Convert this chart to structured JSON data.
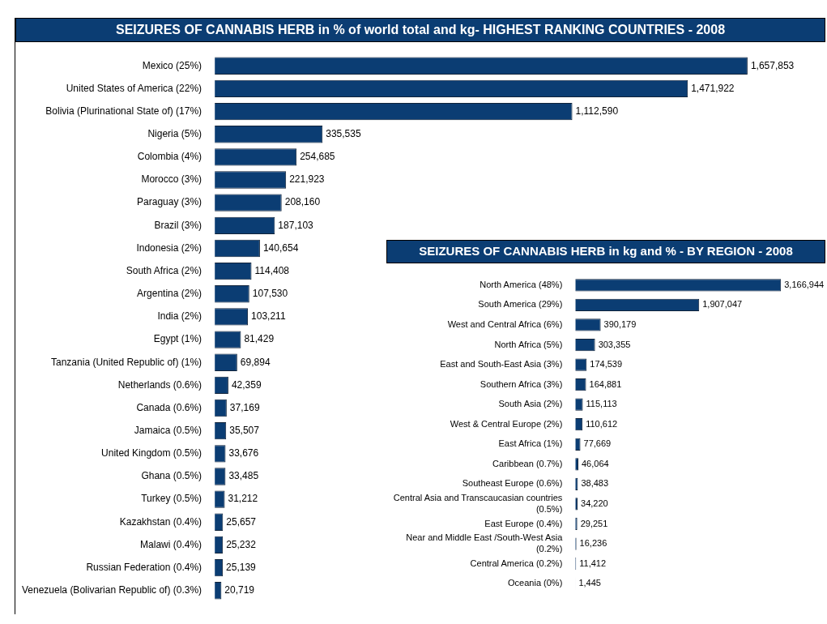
{
  "chart_data": [
    {
      "type": "bar",
      "orientation": "horizontal",
      "title": "SEIZURES OF CANNABIS HERB in % of world total and kg- HIGHEST RANKING COUNTRIES - 2008",
      "color": "#0b3d73",
      "value_labels": [
        "1,657,853",
        "1,471,922",
        "1,112,590",
        "335,535",
        "254,685",
        "221,923",
        "208,160",
        "187,103",
        "140,654",
        "114,408",
        "107,530",
        "103,211",
        "81,429",
        "69,894",
        "42,359",
        "37,169",
        "35,507",
        "33,676",
        "33,485",
        "31,212",
        "25,657",
        "25,232",
        "25,139",
        "20,719"
      ],
      "categories": [
        "Mexico (25%)",
        "United States of America (22%)",
        "Bolivia (Plurinational State of) (17%)",
        "Nigeria (5%)",
        "Colombia (4%)",
        "Morocco (3%)",
        "Paraguay (3%)",
        "Brazil (3%)",
        "Indonesia (2%)",
        "South Africa (2%)",
        "Argentina (2%)",
        "India (2%)",
        "Egypt (1%)",
        "Tanzania (United Republic of) (1%)",
        "Netherlands (0.6%)",
        "Canada (0.6%)",
        "Jamaica (0.5%)",
        "United Kingdom (0.5%)",
        "Ghana (0.5%)",
        "Turkey (0.5%)",
        "Kazakhstan (0.4%)",
        "Malawi (0.4%)",
        "Russian Federation (0.4%)",
        "Venezuela (Bolivarian Republic of) (0.3%)"
      ],
      "values": [
        1657853,
        1471922,
        1112590,
        335535,
        254685,
        221923,
        208160,
        187103,
        140654,
        114408,
        107530,
        103211,
        81429,
        69894,
        42359,
        37169,
        35507,
        33676,
        33485,
        31212,
        25657,
        25232,
        25139,
        20719
      ]
    },
    {
      "type": "bar",
      "orientation": "horizontal",
      "title": "SEIZURES OF CANNABIS HERB in kg and % - BY REGION - 2008",
      "color": "#0b3d73",
      "value_labels": [
        "3,166,944",
        "1,907,047",
        "390,179",
        "303,355",
        "174,539",
        "164,881",
        "115,113",
        "110,612",
        "77,669",
        "46,064",
        "38,483",
        "34,220",
        "29,251",
        "16,236",
        "11,412",
        "1,445"
      ],
      "categories": [
        "North America (48%)",
        "South America (29%)",
        "West and Central Africa (6%)",
        "North Africa (5%)",
        "East and South-East Asia (3%)",
        "Southern Africa (3%)",
        "South Asia (2%)",
        "West & Central Europe (2%)",
        "East Africa (1%)",
        "Caribbean (0.7%)",
        "Southeast Europe (0.6%)",
        "Central Asia and Transcaucasian countries (0.5%)",
        "East Europe (0.4%)",
        "Near and Middle East /South-West Asia (0.2%)",
        "Central America (0.2%)",
        "Oceania (0%)"
      ],
      "values": [
        3166944,
        1907047,
        390179,
        303355,
        174539,
        164881,
        115113,
        110612,
        77669,
        46064,
        38483,
        34220,
        29251,
        16236,
        11412,
        1445
      ]
    }
  ]
}
